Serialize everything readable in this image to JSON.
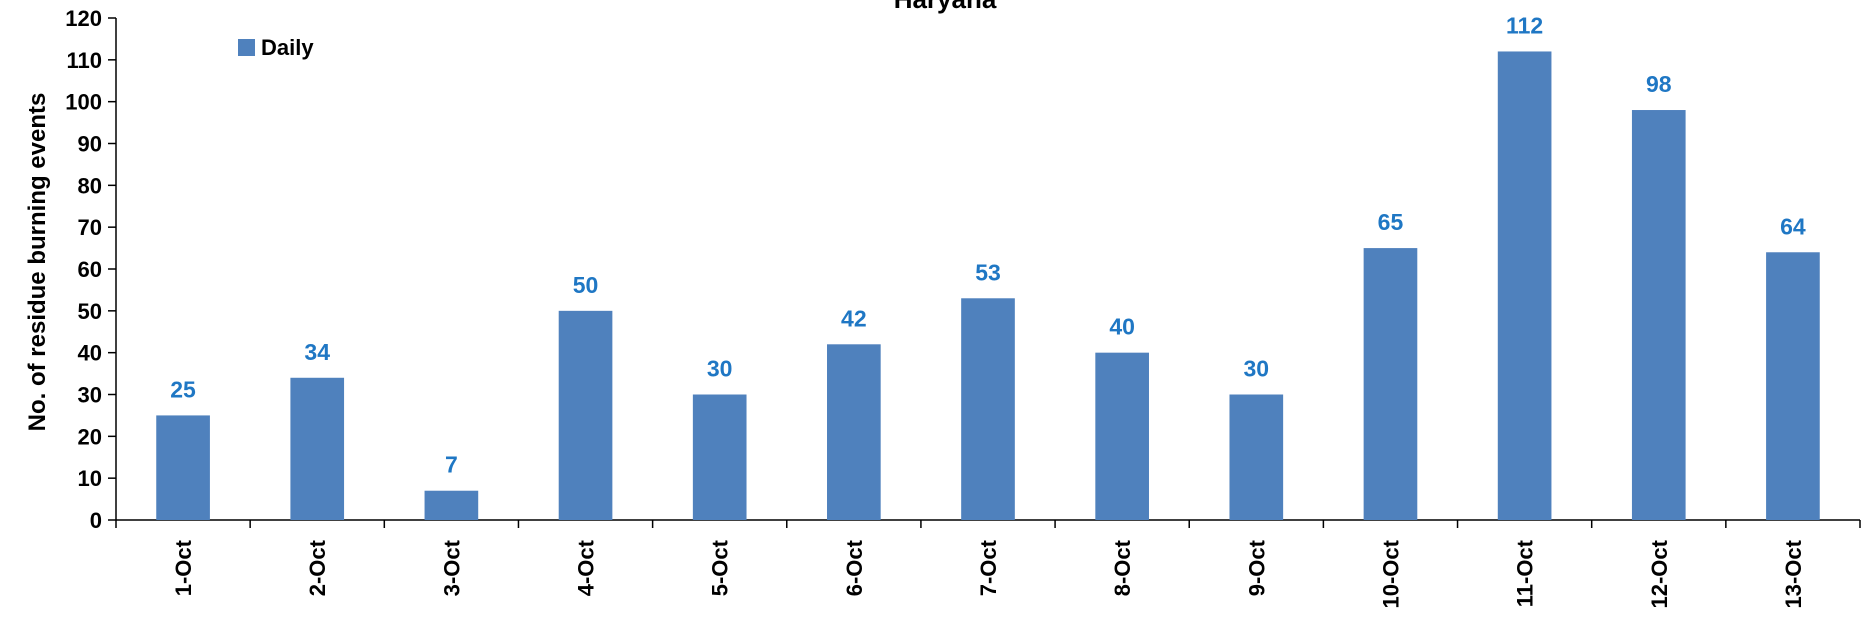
{
  "chart_data": {
    "type": "bar",
    "title": "Haryana",
    "xlabel": "",
    "ylabel": "No. of residue burning events",
    "categories": [
      "1-Oct",
      "2-Oct",
      "3-Oct",
      "4-Oct",
      "5-Oct",
      "6-Oct",
      "7-Oct",
      "8-Oct",
      "9-Oct",
      "10-Oct",
      "11-Oct",
      "12-Oct",
      "13-Oct"
    ],
    "series": [
      {
        "name": "Daily",
        "values": [
          25,
          34,
          7,
          50,
          30,
          42,
          53,
          40,
          30,
          65,
          112,
          98,
          64
        ],
        "color": "#4f81bd"
      }
    ],
    "ylim": [
      0,
      120
    ],
    "yticks": [
      0,
      10,
      20,
      30,
      40,
      50,
      60,
      70,
      80,
      90,
      100,
      110,
      120
    ],
    "grid": false,
    "legend_position": "top-left",
    "data_label_color": "#1f77c4"
  }
}
